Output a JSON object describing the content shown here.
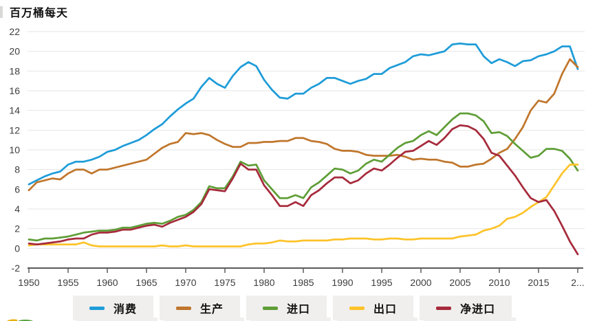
{
  "title": "百万桶每天",
  "style": {
    "grid_color": "#e6e6e6",
    "axis_color": "#5a5a5a",
    "tick_label_color": "#3d3d3d",
    "legend_bg": "#f0efed"
  },
  "chart_data": {
    "type": "line",
    "title": "百万桶每天",
    "xlabel": "",
    "ylabel": "百万桶每天",
    "ylim": [
      -2,
      22
    ],
    "grid": "horizontal",
    "legend_position": "bottom",
    "y_ticks": [
      22,
      20,
      18,
      16,
      14,
      12,
      10,
      8,
      6,
      4,
      2,
      0,
      -2
    ],
    "x_tick_years": [
      1950,
      1955,
      1960,
      1965,
      1970,
      1975,
      1980,
      1985,
      1990,
      1995,
      2000,
      2005,
      2010,
      2015,
      2020
    ],
    "x_tick_labels": [
      "1950",
      "1955",
      "1960",
      "1965",
      "1970",
      "1975",
      "1980",
      "1985",
      "1990",
      "1995",
      "2000",
      "2005",
      "2010",
      "2015",
      "2..."
    ],
    "x": [
      1950,
      1951,
      1952,
      1953,
      1954,
      1955,
      1956,
      1957,
      1958,
      1959,
      1960,
      1961,
      1962,
      1963,
      1964,
      1965,
      1966,
      1967,
      1968,
      1969,
      1970,
      1971,
      1972,
      1973,
      1974,
      1975,
      1976,
      1977,
      1978,
      1979,
      1980,
      1981,
      1982,
      1983,
      1984,
      1985,
      1986,
      1987,
      1988,
      1989,
      1990,
      1991,
      1992,
      1993,
      1994,
      1995,
      1996,
      1997,
      1998,
      1999,
      2000,
      2001,
      2002,
      2003,
      2004,
      2005,
      2006,
      2007,
      2008,
      2009,
      2010,
      2011,
      2012,
      2013,
      2014,
      2015,
      2016,
      2017,
      2018,
      2019,
      2020
    ],
    "series": [
      {
        "key": "consumption",
        "name": "消费",
        "color": "#1e9cd8",
        "values": [
          6.5,
          6.9,
          7.3,
          7.6,
          7.8,
          8.5,
          8.8,
          8.8,
          9.0,
          9.3,
          9.8,
          10.0,
          10.4,
          10.7,
          11.0,
          11.5,
          12.1,
          12.6,
          13.4,
          14.1,
          14.7,
          15.2,
          16.4,
          17.3,
          16.7,
          16.3,
          17.5,
          18.4,
          18.9,
          18.5,
          17.1,
          16.1,
          15.3,
          15.2,
          15.7,
          15.7,
          16.3,
          16.7,
          17.3,
          17.3,
          17.0,
          16.7,
          17.0,
          17.2,
          17.7,
          17.7,
          18.3,
          18.6,
          18.9,
          19.5,
          19.7,
          19.6,
          19.8,
          20.0,
          20.7,
          20.8,
          20.7,
          20.7,
          19.5,
          18.8,
          19.2,
          18.9,
          18.5,
          19.0,
          19.1,
          19.5,
          19.7,
          20.0,
          20.5,
          20.5,
          18.2
        ]
      },
      {
        "key": "production",
        "name": "生产",
        "color": "#c0762c",
        "values": [
          5.9,
          6.7,
          6.9,
          7.1,
          7.0,
          7.6,
          8.0,
          8.0,
          7.6,
          8.0,
          8.0,
          8.2,
          8.4,
          8.6,
          8.8,
          9.0,
          9.6,
          10.2,
          10.6,
          10.8,
          11.7,
          11.6,
          11.7,
          11.5,
          11.0,
          10.6,
          10.3,
          10.3,
          10.7,
          10.7,
          10.8,
          10.8,
          10.9,
          10.9,
          11.2,
          11.2,
          10.9,
          10.8,
          10.6,
          10.1,
          9.9,
          9.9,
          9.8,
          9.5,
          9.4,
          9.4,
          9.4,
          9.5,
          9.3,
          9.0,
          9.1,
          9.0,
          9.0,
          8.8,
          8.7,
          8.3,
          8.3,
          8.5,
          8.6,
          9.1,
          9.7,
          10.1,
          11.1,
          12.3,
          14.0,
          15.0,
          14.8,
          15.7,
          17.7,
          19.2,
          18.4
        ]
      },
      {
        "key": "imports",
        "name": "进口",
        "color": "#5f9e37",
        "values": [
          0.9,
          0.8,
          1.0,
          1.0,
          1.1,
          1.2,
          1.4,
          1.6,
          1.7,
          1.8,
          1.8,
          1.9,
          2.1,
          2.1,
          2.3,
          2.5,
          2.6,
          2.5,
          2.8,
          3.2,
          3.4,
          3.9,
          4.7,
          6.3,
          6.1,
          6.1,
          7.3,
          8.8,
          8.4,
          8.5,
          6.9,
          6.0,
          5.1,
          5.1,
          5.4,
          5.1,
          6.2,
          6.7,
          7.4,
          8.1,
          8.0,
          7.6,
          7.9,
          8.6,
          9.0,
          8.8,
          9.5,
          10.2,
          10.7,
          10.9,
          11.5,
          11.9,
          11.5,
          12.3,
          13.1,
          13.7,
          13.7,
          13.5,
          12.9,
          11.7,
          11.8,
          11.4,
          10.6,
          9.9,
          9.2,
          9.4,
          10.1,
          10.1,
          9.9,
          9.1,
          7.9
        ]
      },
      {
        "key": "exports",
        "name": "出口",
        "color": "#fdc32a",
        "values": [
          0.3,
          0.4,
          0.4,
          0.4,
          0.4,
          0.4,
          0.4,
          0.6,
          0.3,
          0.2,
          0.2,
          0.2,
          0.2,
          0.2,
          0.2,
          0.2,
          0.2,
          0.3,
          0.2,
          0.2,
          0.3,
          0.2,
          0.2,
          0.2,
          0.2,
          0.2,
          0.2,
          0.2,
          0.4,
          0.5,
          0.5,
          0.6,
          0.8,
          0.7,
          0.7,
          0.8,
          0.8,
          0.8,
          0.8,
          0.9,
          0.9,
          1.0,
          1.0,
          1.0,
          0.9,
          0.9,
          1.0,
          1.0,
          0.9,
          0.9,
          1.0,
          1.0,
          1.0,
          1.0,
          1.0,
          1.2,
          1.3,
          1.4,
          1.8,
          2.0,
          2.3,
          3.0,
          3.2,
          3.6,
          4.2,
          4.7,
          5.2,
          6.4,
          7.6,
          8.5,
          8.5
        ]
      },
      {
        "key": "net-imports",
        "name": "净进口",
        "color": "#a62b3c",
        "values": [
          0.5,
          0.4,
          0.5,
          0.6,
          0.7,
          0.9,
          1.0,
          1.0,
          1.4,
          1.6,
          1.6,
          1.7,
          1.9,
          1.9,
          2.1,
          2.3,
          2.4,
          2.2,
          2.6,
          2.9,
          3.2,
          3.7,
          4.5,
          6.0,
          5.9,
          5.8,
          7.1,
          8.6,
          8.0,
          8.0,
          6.4,
          5.4,
          4.3,
          4.3,
          4.7,
          4.3,
          5.4,
          5.9,
          6.6,
          7.2,
          7.2,
          6.6,
          6.9,
          7.6,
          8.1,
          7.9,
          8.5,
          9.2,
          9.8,
          9.9,
          10.4,
          10.9,
          10.5,
          11.2,
          12.1,
          12.5,
          12.4,
          12.0,
          11.1,
          9.7,
          9.4,
          8.4,
          7.4,
          6.2,
          5.1,
          4.7,
          4.9,
          3.8,
          2.3,
          0.7,
          -0.6
        ]
      }
    ]
  }
}
